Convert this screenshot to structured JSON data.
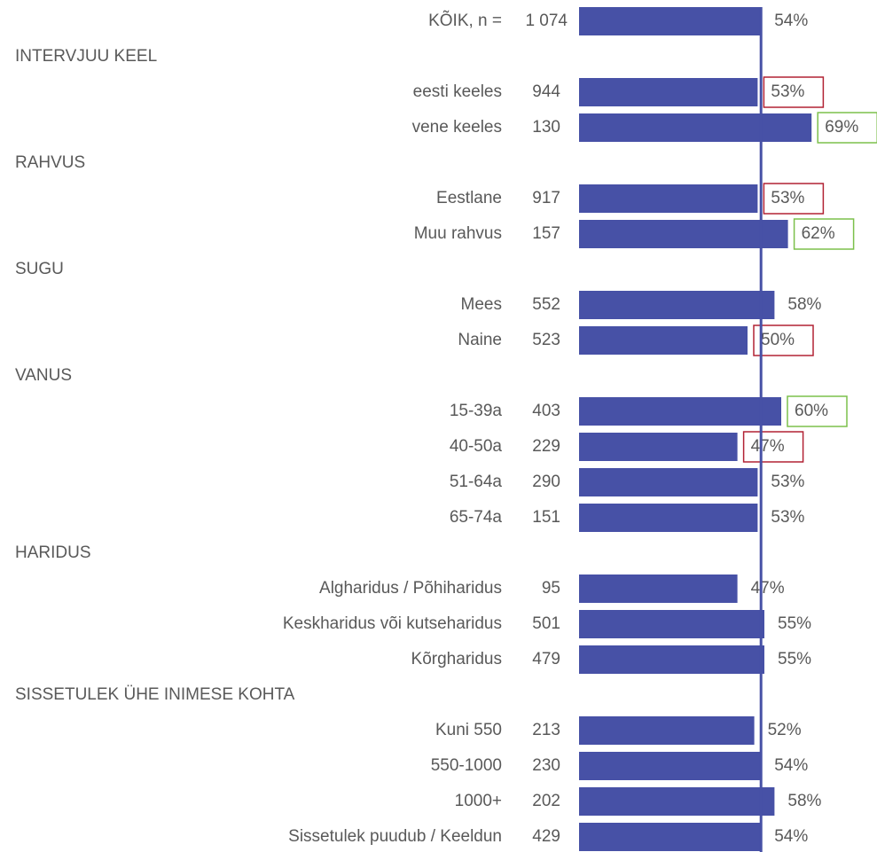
{
  "chart_data": {
    "type": "bar",
    "color": "#4751a6",
    "total": {
      "label": "KÕIK, n =",
      "n": 1074,
      "n_label": "1 074",
      "value": 54,
      "value_label": "54%"
    },
    "groups": [
      {
        "name": "INTERVJUU KEEL",
        "items": [
          {
            "label": "eesti keeles",
            "n": 944,
            "value": 53,
            "value_label": "53%",
            "box_color": "#b22234"
          },
          {
            "label": "vene keeles",
            "n": 130,
            "value": 69,
            "value_label": "69%",
            "box_color": "#7cc04b"
          }
        ]
      },
      {
        "name": "RAHVUS",
        "items": [
          {
            "label": "Eestlane",
            "n": 917,
            "value": 53,
            "value_label": "53%",
            "box_color": "#b22234"
          },
          {
            "label": "Muu rahvus",
            "n": 157,
            "value": 62,
            "value_label": "62%",
            "box_color": "#7cc04b"
          }
        ]
      },
      {
        "name": "SUGU",
        "items": [
          {
            "label": "Mees",
            "n": 552,
            "value": 58,
            "value_label": "58%"
          },
          {
            "label": "Naine",
            "n": 523,
            "value": 50,
            "value_label": "50%",
            "box_color": "#b22234"
          }
        ]
      },
      {
        "name": "VANUS",
        "items": [
          {
            "label": "15-39a",
            "n": 403,
            "value": 60,
            "value_label": "60%",
            "box_color": "#7cc04b"
          },
          {
            "label": "40-50a",
            "n": 229,
            "value": 47,
            "value_label": "47%",
            "box_color": "#b22234"
          },
          {
            "label": "51-64a",
            "n": 290,
            "value": 53,
            "value_label": "53%"
          },
          {
            "label": "65-74a",
            "n": 151,
            "value": 53,
            "value_label": "53%"
          }
        ]
      },
      {
        "name": "HARIDUS",
        "items": [
          {
            "label": "Algharidus / Põhiharidus",
            "n": 95,
            "value": 47,
            "value_label": "47%"
          },
          {
            "label": "Keskharidus või kutseharidus",
            "n": 501,
            "value": 55,
            "value_label": "55%"
          },
          {
            "label": "Kõrgharidus",
            "n": 479,
            "value": 55,
            "value_label": "55%"
          }
        ]
      },
      {
        "name": "SISSETULEK ÜHE INIMESE KOHTA",
        "items": [
          {
            "label": "Kuni 550",
            "n": 213,
            "value": 52,
            "value_label": "52%"
          },
          {
            "label": "550-1000",
            "n": 230,
            "value": 54,
            "value_label": "54%"
          },
          {
            "label": "1000+",
            "n": 202,
            "value": 58,
            "value_label": "58%"
          },
          {
            "label": "Sissetulek puudub / Keeldun",
            "n": 429,
            "value": 54,
            "value_label": "54%"
          }
        ]
      }
    ]
  }
}
